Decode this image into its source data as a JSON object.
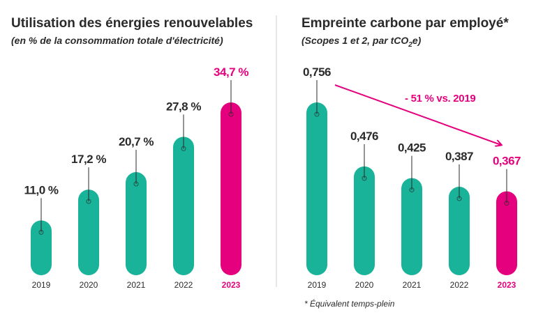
{
  "colors": {
    "bar": "#19b399",
    "highlight": "#e5007e",
    "text": "#2a2a2a",
    "divider": "#cfcfcf"
  },
  "chart_data": [
    {
      "type": "bar",
      "title": "Utilisation des énergies renouvelables",
      "subtitle": "(en % de la consommation totale d'électricité)",
      "categories": [
        "2019",
        "2020",
        "2021",
        "2022",
        "2023"
      ],
      "values": [
        11.0,
        17.2,
        20.7,
        27.8,
        34.7
      ],
      "value_labels": [
        "11,0 %",
        "17,2 %",
        "20,7 %",
        "27,8 %",
        "34,7 %"
      ],
      "highlight_index": 4
    },
    {
      "type": "bar",
      "title": "Empreinte carbone par employé*",
      "subtitle_main": "(Scopes 1 et 2, par tCO",
      "subtitle_sub": "2",
      "subtitle_end": "e)",
      "categories": [
        "2019",
        "2020",
        "2021",
        "2022",
        "2023"
      ],
      "values": [
        0.756,
        0.476,
        0.425,
        0.387,
        0.367
      ],
      "value_labels": [
        "0,756",
        "0,476",
        "0,425",
        "0,387",
        "0,367"
      ],
      "highlight_index": 4,
      "annotation": "- 51 % vs. 2019",
      "footnote": "* Équivalent temps-plein"
    }
  ]
}
